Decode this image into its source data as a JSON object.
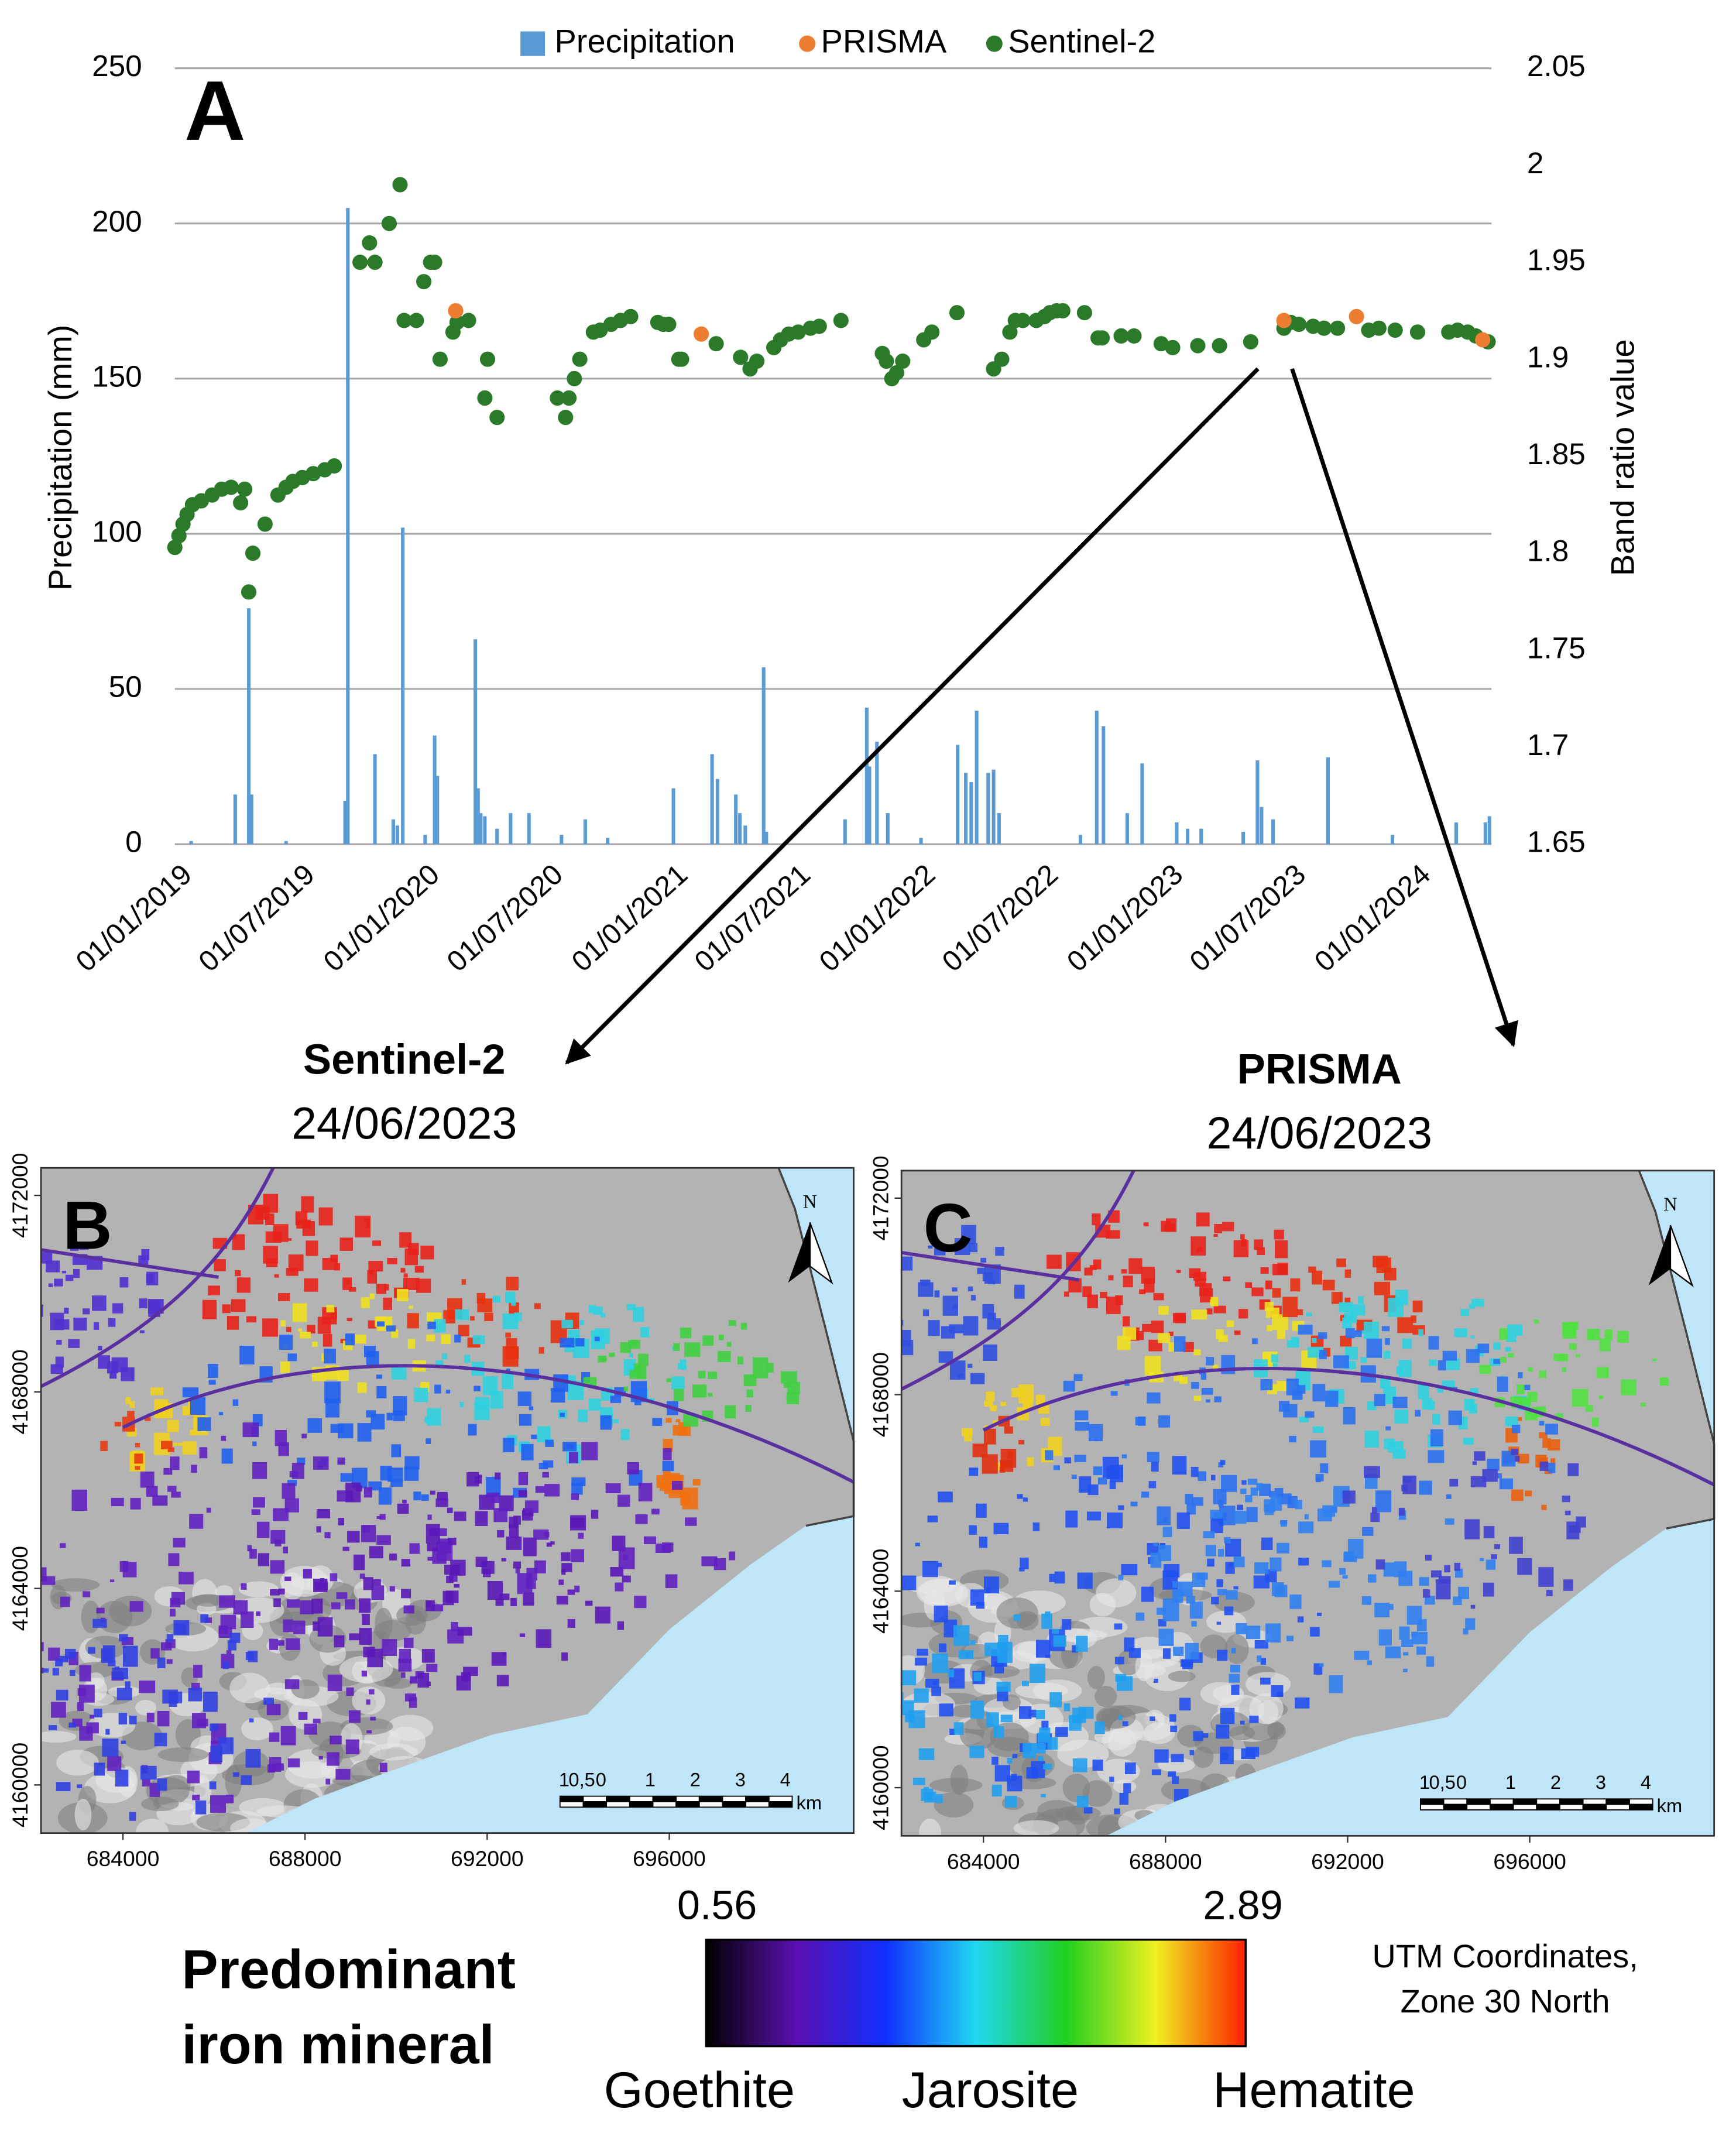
{
  "chart_data": {
    "type": "combo",
    "panel_label": "A",
    "ylabel": "Precipitation (mm)",
    "y2label": "Band ratio value",
    "ylim": [
      0,
      250
    ],
    "yticks": [
      0,
      50,
      100,
      150,
      200,
      250
    ],
    "y2lim": [
      1.65,
      2.05
    ],
    "y2ticks": [
      1.65,
      1.7,
      1.75,
      1.8,
      1.85,
      1.9,
      1.95,
      2,
      2.05
    ],
    "xlim": [
      "2019-01-01",
      "2024-04-25"
    ],
    "xticks": [
      {
        "value": "2019-01-01",
        "label": "01/01/2019"
      },
      {
        "value": "2019-07-01",
        "label": "01/07/2019"
      },
      {
        "value": "2020-01-01",
        "label": "01/01/2020"
      },
      {
        "value": "2020-07-01",
        "label": "01/07/2020"
      },
      {
        "value": "2021-01-01",
        "label": "01/01/2021"
      },
      {
        "value": "2021-07-01",
        "label": "01/07/2021"
      },
      {
        "value": "2022-01-01",
        "label": "01/01/2022"
      },
      {
        "value": "2022-07-01",
        "label": "01/07/2022"
      },
      {
        "value": "2023-01-01",
        "label": "01/01/2023"
      },
      {
        "value": "2023-07-01",
        "label": "01/07/2023"
      },
      {
        "value": "2024-01-01",
        "label": "01/01/2024"
      }
    ],
    "grid": true,
    "legend": "top",
    "series": [
      {
        "name": "Precipitation",
        "type": "bar",
        "color": "#5b9bd5",
        "x": [
          "2019-01-25",
          "2019-03-31",
          "2019-04-20",
          "2019-04-24",
          "2019-06-14",
          "2019-09-09",
          "2019-09-13",
          "2019-10-23",
          "2019-11-19",
          "2019-11-25",
          "2019-12-03",
          "2020-01-05",
          "2020-01-19",
          "2020-01-23",
          "2020-03-19",
          "2020-03-23",
          "2020-03-27",
          "2020-04-02",
          "2020-04-20",
          "2020-05-10",
          "2020-06-06",
          "2020-07-24",
          "2020-08-28",
          "2020-09-30",
          "2021-01-05",
          "2021-03-03",
          "2021-03-11",
          "2021-04-07",
          "2021-04-13",
          "2021-04-21",
          "2021-05-18",
          "2021-05-22",
          "2021-09-15",
          "2021-10-17",
          "2021-10-21",
          "2021-11-01",
          "2021-11-17",
          "2022-01-05",
          "2022-02-28",
          "2022-03-12",
          "2022-03-20",
          "2022-03-28",
          "2022-04-14",
          "2022-04-22",
          "2022-04-30",
          "2022-08-28",
          "2022-09-21",
          "2022-10-01",
          "2022-11-05",
          "2022-11-27",
          "2023-01-17",
          "2023-02-02",
          "2023-02-22",
          "2023-04-25",
          "2023-05-16",
          "2023-05-22",
          "2023-06-08",
          "2023-08-28",
          "2023-12-01",
          "2024-03-04",
          "2024-04-16",
          "2024-04-22"
        ],
        "values": [
          1,
          16,
          76,
          16,
          1,
          14,
          205,
          29,
          8,
          6,
          102,
          3,
          35,
          22,
          66,
          18,
          10,
          9,
          5,
          10,
          10,
          3,
          8,
          2,
          18,
          29,
          21,
          16,
          10,
          6,
          57,
          4,
          8,
          44,
          25,
          33,
          10,
          2,
          32,
          23,
          20,
          43,
          23,
          24,
          10,
          3,
          43,
          38,
          10,
          26,
          7,
          5,
          5,
          4,
          27,
          12,
          8,
          28,
          3,
          7,
          7,
          9
        ]
      },
      {
        "name": "PRISMA",
        "type": "scatter",
        "axis": "y2",
        "color": "#ed7d31",
        "x": [
          "2020-02-19",
          "2021-02-15",
          "2023-06-24",
          "2023-10-09",
          "2024-04-12"
        ],
        "values": [
          1.925,
          1.913,
          1.92,
          1.922,
          1.91
        ]
      },
      {
        "name": "Sentinel-2",
        "type": "scatter",
        "axis": "y2",
        "color": "#2a7a2a",
        "x": [
          "2019-01-01",
          "2019-01-07",
          "2019-01-13",
          "2019-01-19",
          "2019-01-27",
          "2019-02-09",
          "2019-02-25",
          "2019-03-11",
          "2019-03-25",
          "2019-04-08",
          "2019-04-14",
          "2019-04-20",
          "2019-04-26",
          "2019-05-14",
          "2019-06-02",
          "2019-06-14",
          "2019-06-24",
          "2019-07-08",
          "2019-07-24",
          "2019-08-10",
          "2019-08-24",
          "2019-10-01",
          "2019-10-15",
          "2019-10-23",
          "2019-11-13",
          "2019-11-29",
          "2019-12-05",
          "2019-12-23",
          "2020-01-03",
          "2020-01-13",
          "2020-01-19",
          "2020-01-27",
          "2020-02-15",
          "2020-02-21",
          "2020-03-09",
          "2020-04-02",
          "2020-04-06",
          "2020-04-20",
          "2020-07-18",
          "2020-07-30",
          "2020-08-04",
          "2020-08-12",
          "2020-08-20",
          "2020-09-09",
          "2020-09-19",
          "2020-10-05",
          "2020-10-19",
          "2020-11-03",
          "2020-12-13",
          "2020-12-21",
          "2020-12-29",
          "2021-01-13",
          "2021-01-17",
          "2021-03-09",
          "2021-04-14",
          "2021-04-28",
          "2021-05-08",
          "2021-06-02",
          "2021-06-12",
          "2021-06-24",
          "2021-07-08",
          "2021-07-26",
          "2021-08-08",
          "2021-09-09",
          "2021-11-09",
          "2021-11-15",
          "2021-11-23",
          "2021-11-30",
          "2021-12-09",
          "2022-01-09",
          "2022-01-21",
          "2022-02-27",
          "2022-04-22",
          "2022-05-04",
          "2022-05-16",
          "2022-05-24",
          "2022-06-04",
          "2022-06-24",
          "2022-07-06",
          "2022-07-14",
          "2022-07-24",
          "2022-08-02",
          "2022-09-03",
          "2022-09-23",
          "2022-09-29",
          "2022-10-27",
          "2022-11-15",
          "2022-12-25",
          "2023-01-11",
          "2023-02-17",
          "2023-03-21",
          "2023-05-06",
          "2023-06-24",
          "2023-07-04",
          "2023-07-16",
          "2023-08-06",
          "2023-08-22",
          "2023-09-11",
          "2023-10-27",
          "2023-11-11",
          "2023-12-05",
          "2024-01-07",
          "2024-02-22",
          "2024-03-06",
          "2024-03-21",
          "2024-04-02",
          "2024-04-20"
        ],
        "values": [
          1.803,
          1.809,
          1.815,
          1.82,
          1.825,
          1.827,
          1.83,
          1.833,
          1.834,
          1.826,
          1.833,
          1.78,
          1.8,
          1.815,
          1.83,
          1.834,
          1.837,
          1.839,
          1.841,
          1.843,
          1.845,
          1.95,
          1.96,
          1.95,
          1.97,
          1.99,
          1.92,
          1.92,
          1.94,
          1.95,
          1.95,
          1.9,
          1.914,
          1.919,
          1.92,
          1.88,
          1.9,
          1.87,
          1.88,
          1.87,
          1.88,
          1.89,
          1.9,
          1.914,
          1.915,
          1.918,
          1.92,
          1.922,
          1.919,
          1.918,
          1.918,
          1.9,
          1.9,
          1.908,
          1.901,
          1.895,
          1.899,
          1.906,
          1.91,
          1.913,
          1.914,
          1.916,
          1.917,
          1.92,
          1.903,
          1.899,
          1.89,
          1.893,
          1.899,
          1.91,
          1.914,
          1.924,
          1.895,
          1.9,
          1.914,
          1.92,
          1.92,
          1.92,
          1.922,
          1.924,
          1.925,
          1.925,
          1.924,
          1.911,
          1.911,
          1.912,
          1.912,
          1.908,
          1.906,
          1.907,
          1.907,
          1.909,
          1.916,
          1.919,
          1.918,
          1.917,
          1.916,
          1.916,
          1.915,
          1.916,
          1.915,
          1.914,
          1.914,
          1.915,
          1.914,
          1.912,
          1.909
        ]
      }
    ]
  },
  "maps": [
    {
      "label": "B",
      "sensor": "Sentinel-2",
      "date": "24/06/2023",
      "north": "N",
      "xlim": [
        682200,
        700050
      ],
      "ylim": [
        4159020,
        4172560
      ],
      "xticks": [
        684000,
        688000,
        692000,
        696000
      ],
      "yticks": [
        4160000,
        4164000,
        4168000,
        4172000
      ],
      "scale_labels": [
        1,
        "0,5",
        0,
        1,
        2,
        3,
        4
      ],
      "scale_unit": "km"
    },
    {
      "label": "C",
      "sensor": "PRISMA",
      "date": "24/06/2023",
      "north": "N",
      "xlim": [
        682200,
        700050
      ],
      "ylim": [
        4159020,
        4172560
      ],
      "xticks": [
        684000,
        688000,
        692000,
        696000
      ],
      "yticks": [
        4160000,
        4164000,
        4168000,
        4172000
      ],
      "scale_labels": [
        1,
        "0,5",
        0,
        1,
        2,
        3,
        4
      ],
      "scale_unit": "km"
    }
  ],
  "colorbar": {
    "title": [
      "Predominant",
      "iron mineral"
    ],
    "min": 0.56,
    "max": 2.89,
    "colors": [
      "#000000",
      "#5a10b0",
      "#1030ff",
      "#20d8f0",
      "#20d020",
      "#f0f020",
      "#ff2000"
    ],
    "classes": [
      "Goethite",
      "Jarosite",
      "Hematite"
    ]
  },
  "coordinates_note": [
    "UTM Coordinates,",
    "Zone 30 North"
  ]
}
